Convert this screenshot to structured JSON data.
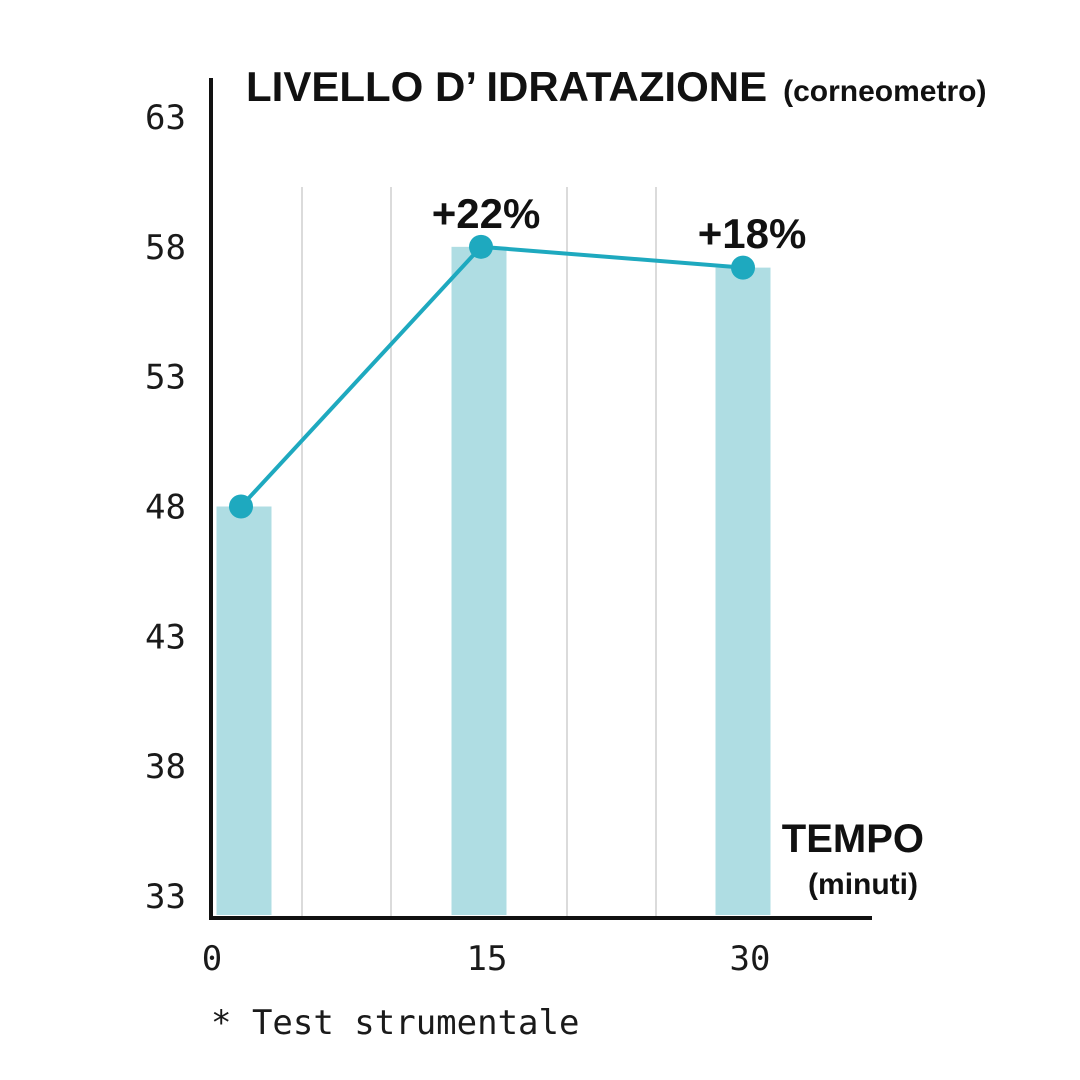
{
  "chart_data": {
    "type": "bar",
    "title": "LIVELLO D’ IDRATAZIONE",
    "title_note": "(corneometro)",
    "xlabel": "TEMPO",
    "xlabel_note": "(minuti)",
    "ylabel": "",
    "x_ticks": [
      "0",
      "15",
      "30"
    ],
    "y_ticks": [
      "63",
      "58",
      "53",
      "48",
      "43",
      "38",
      "33"
    ],
    "ylim": [
      33,
      63
    ],
    "x": [
      0,
      15,
      30
    ],
    "values": [
      48,
      58,
      57.2
    ],
    "line_values": [
      48,
      58,
      57.2
    ],
    "data_labels": [
      "",
      "+22%",
      "+18%"
    ],
    "grid": "vertical",
    "legend": "none",
    "footnote": "* Test strumentale",
    "colors": {
      "bar": "#afdde3",
      "line": "#1ea9bf",
      "axis": "#111111",
      "grid": "#cfcfcf"
    }
  }
}
